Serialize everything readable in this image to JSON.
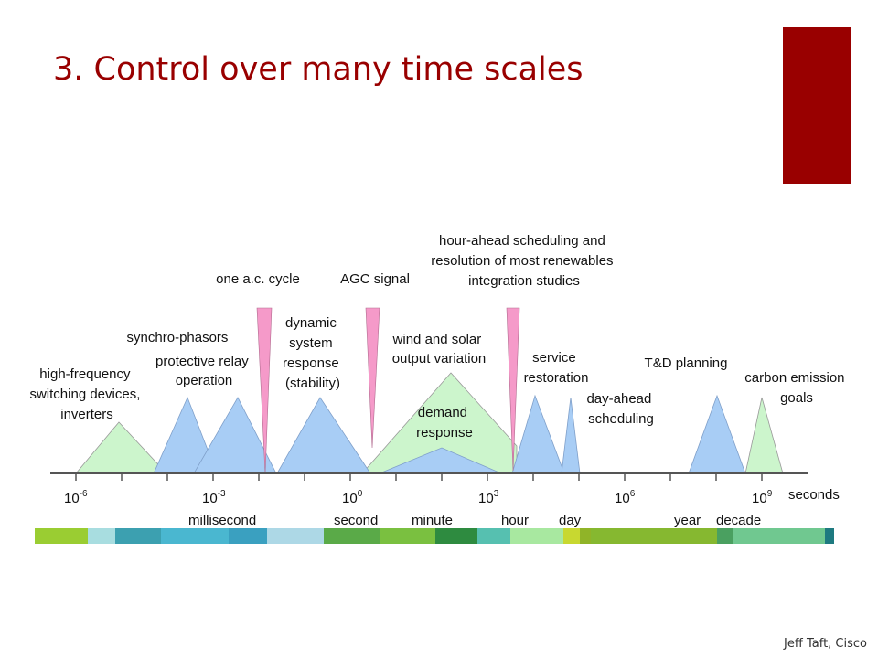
{
  "slide": {
    "title": "3. Control over many time scales",
    "credit": "Jeff Taft, Cisco",
    "accent_color": "#990000"
  },
  "diagram": {
    "labels": {
      "high_frequency": [
        "high-frequency",
        "switching devices,",
        "inverters"
      ],
      "synchro_phasors": [
        "synchro-phasors"
      ],
      "protective_relay": [
        "protective relay",
        "operation"
      ],
      "ac_cycle": [
        "one a.c. cycle"
      ],
      "dynamic_response": [
        "dynamic",
        "system",
        "response",
        "(stability)"
      ],
      "agc_signal": [
        "AGC signal"
      ],
      "hour_ahead": [
        "hour-ahead scheduling and",
        "resolution of most renewables",
        "integration studies"
      ],
      "wind_solar": [
        "wind and solar",
        "output variation"
      ],
      "demand_response": [
        "demand",
        "response"
      ],
      "service_restoration": [
        "service",
        "restoration"
      ],
      "day_ahead": [
        "day-ahead",
        "scheduling"
      ],
      "td_planning": [
        "T&D planning"
      ],
      "carbon_goals": [
        "carbon emission",
        "goals"
      ]
    },
    "axis": {
      "ticks": [
        {
          "base": "10",
          "exp": "-6"
        },
        {
          "base": "10",
          "exp": "-3"
        },
        {
          "base": "10",
          "exp": "0"
        },
        {
          "base": "10",
          "exp": "3"
        },
        {
          "base": "10",
          "exp": "6"
        },
        {
          "base": "10",
          "exp": "9"
        }
      ],
      "unit": "seconds",
      "scale_labels": [
        "millisecond",
        "second",
        "minute",
        "hour",
        "day",
        "year",
        "decade"
      ]
    },
    "colors": {
      "blue": "#a8cdf5",
      "green": "#ccf5cc",
      "pink": "#f59ac9",
      "axis": "#555555"
    }
  }
}
